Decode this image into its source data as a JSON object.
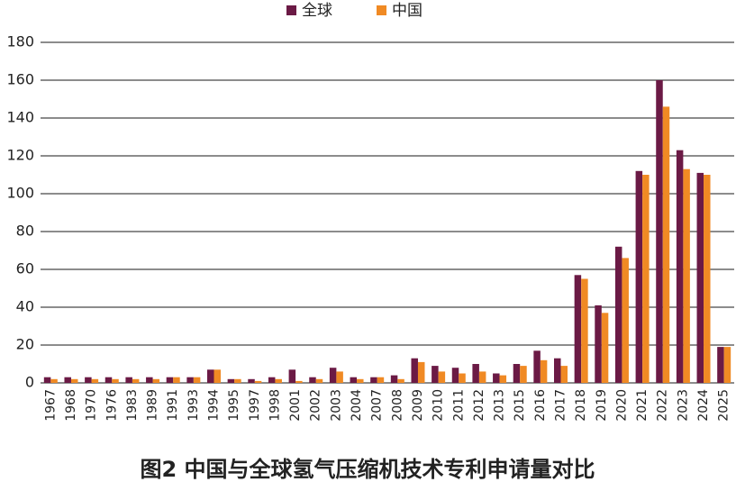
{
  "chart_data": {
    "type": "bar",
    "caption": "图2 中国与全球氢气压缩机技术专利申请量对比",
    "categories": [
      "1967",
      "1968",
      "1970",
      "1976",
      "1983",
      "1989",
      "1991",
      "1993",
      "1994",
      "1995",
      "1997",
      "1998",
      "2001",
      "2002",
      "2003",
      "2004",
      "2007",
      "2008",
      "2009",
      "2010",
      "2011",
      "2012",
      "2013",
      "2015",
      "2016",
      "2017",
      "2018",
      "2019",
      "2020",
      "2021",
      "2022",
      "2023",
      "2024",
      "2025"
    ],
    "series": [
      {
        "name": "全球",
        "color": "#6b1a45",
        "values": [
          3,
          3,
          3,
          3,
          3,
          3,
          3,
          3,
          7,
          2,
          2,
          3,
          7,
          3,
          8,
          3,
          3,
          4,
          13,
          9,
          8,
          10,
          5,
          10,
          17,
          13,
          57,
          41,
          72,
          112,
          160,
          123,
          111,
          19
        ]
      },
      {
        "name": "中国",
        "color": "#f08a24",
        "values": [
          2,
          2,
          2,
          2,
          2,
          2,
          3,
          3,
          7,
          2,
          1,
          2,
          1,
          2,
          6,
          2,
          3,
          2,
          11,
          6,
          5,
          6,
          4,
          9,
          12,
          9,
          55,
          37,
          66,
          110,
          146,
          113,
          110,
          19
        ]
      }
    ],
    "ylim": [
      0,
      180
    ],
    "yticks": [
      0,
      20,
      40,
      60,
      80,
      100,
      120,
      140,
      160,
      180
    ],
    "grid": true,
    "legend": "top"
  }
}
